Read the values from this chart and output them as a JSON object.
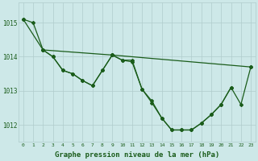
{
  "background_color": "#cde8e8",
  "grid_color": "#b0cccc",
  "line_color": "#1a5c1a",
  "marker_color": "#1a5c1a",
  "xlabel": "Graphe pression niveau de la mer (hPa)",
  "xlabel_fontsize": 6.5,
  "ylabel_ticks": [
    1012,
    1013,
    1014,
    1015
  ],
  "xlim": [
    -0.5,
    23.5
  ],
  "ylim": [
    1011.5,
    1015.6
  ],
  "line1_x": [
    0,
    1,
    2,
    3,
    4,
    5,
    6,
    7,
    8,
    9,
    10,
    11,
    12,
    13,
    14,
    15,
    16,
    17,
    18,
    19,
    20,
    21
  ],
  "line1_y": [
    1015.1,
    1015.0,
    1014.2,
    1014.0,
    1013.6,
    1013.5,
    1013.3,
    1013.15,
    1013.6,
    1014.05,
    1013.9,
    1013.85,
    1013.05,
    1012.7,
    1012.2,
    1011.85,
    1011.85,
    1011.85,
    1012.05,
    1012.3,
    1012.6,
    1013.1
  ],
  "line2_x": [
    0,
    2,
    9,
    23
  ],
  "line2_y": [
    1015.1,
    1014.2,
    1014.05,
    1013.7
  ],
  "line3_x": [
    2,
    3,
    4,
    5,
    6,
    7,
    8,
    9,
    10,
    11,
    12,
    13,
    14,
    15,
    16,
    17,
    18,
    19,
    20,
    21,
    22,
    23
  ],
  "line3_y": [
    1014.2,
    1014.0,
    1013.6,
    1013.5,
    1013.3,
    1013.15,
    1013.6,
    1014.05,
    1013.9,
    1013.9,
    1013.05,
    1012.65,
    1012.2,
    1011.85,
    1011.85,
    1011.85,
    1012.05,
    1012.3,
    1012.6,
    1013.1,
    1012.6,
    1013.7
  ],
  "xtick_labels": [
    "0",
    "1",
    "2",
    "3",
    "4",
    "5",
    "6",
    "7",
    "8",
    "9",
    "10",
    "11",
    "12",
    "13",
    "14",
    "15",
    "16",
    "17",
    "18",
    "19",
    "20",
    "21",
    "22",
    "23"
  ]
}
